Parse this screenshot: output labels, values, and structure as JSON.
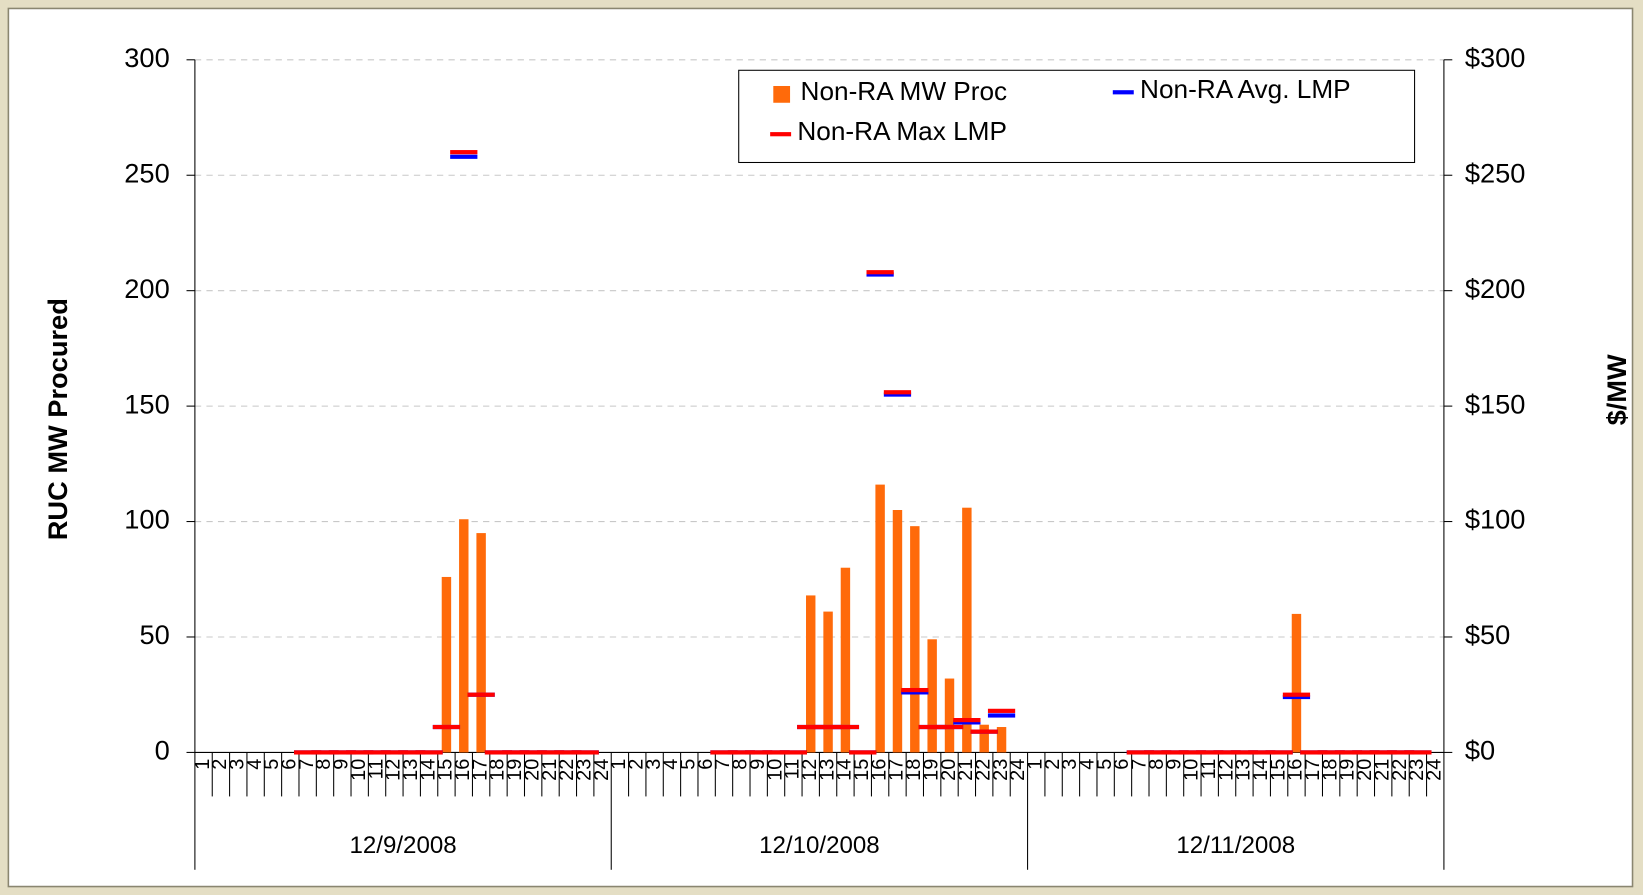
{
  "chart_data": {
    "type": "bar",
    "y_label": "RUC MW Procured",
    "y2_label": "$/MW",
    "categories": [
      "1",
      "2",
      "3",
      "4",
      "5",
      "6",
      "7",
      "8",
      "9",
      "10",
      "11",
      "12",
      "13",
      "14",
      "15",
      "16",
      "17",
      "18",
      "19",
      "20",
      "21",
      "22",
      "23",
      "24",
      "1",
      "2",
      "3",
      "4",
      "5",
      "6",
      "7",
      "8",
      "9",
      "10",
      "11",
      "12",
      "13",
      "14",
      "15",
      "16",
      "17",
      "18",
      "19",
      "20",
      "21",
      "22",
      "23",
      "24",
      "1",
      "2",
      "3",
      "4",
      "5",
      "6",
      "7",
      "8",
      "9",
      "10",
      "11",
      "12",
      "13",
      "14",
      "15",
      "16",
      "17",
      "18",
      "19",
      "20",
      "21",
      "22",
      "23",
      "24"
    ],
    "groups": [
      "12/9/2008",
      "12/10/2008",
      "12/11/2008"
    ],
    "series": [
      {
        "name": "Non-RA MW Proc",
        "color": "#ff6a0a",
        "mark": "bar",
        "values": [
          null,
          null,
          null,
          null,
          null,
          null,
          0,
          0,
          0,
          0,
          0,
          0,
          0,
          0,
          76,
          101,
          95,
          0,
          0,
          0,
          0,
          0,
          0,
          null,
          null,
          null,
          null,
          null,
          null,
          null,
          0,
          0,
          0,
          0,
          0,
          68,
          61,
          80,
          0,
          116,
          105,
          98,
          49,
          32,
          106,
          12,
          11,
          null,
          null,
          null,
          null,
          null,
          null,
          null,
          0,
          0,
          0,
          0,
          0,
          0,
          0,
          0,
          0,
          60,
          0,
          0,
          0,
          0,
          0,
          0,
          0,
          null
        ]
      },
      {
        "name": "Non-RA Avg. LMP",
        "color": "#0000ff",
        "mark": "dash",
        "axis": "y2",
        "values": [
          null,
          null,
          null,
          null,
          null,
          null,
          0,
          0,
          0,
          0,
          0,
          0,
          0,
          0,
          11,
          258,
          25,
          0,
          0,
          0,
          0,
          0,
          0,
          null,
          null,
          null,
          null,
          null,
          null,
          null,
          0,
          0,
          0,
          0,
          0,
          11,
          11,
          11,
          0,
          207,
          155,
          26,
          11,
          11,
          13,
          9,
          16,
          null,
          null,
          null,
          null,
          null,
          null,
          null,
          0,
          0,
          0,
          0,
          0,
          0,
          0,
          0,
          0,
          24,
          0,
          0,
          0,
          0,
          0,
          0,
          0,
          null
        ]
      },
      {
        "name": "Non-RA Max LMP",
        "color": "#ff0000",
        "mark": "dash",
        "axis": "y2",
        "values": [
          null,
          null,
          null,
          null,
          null,
          null,
          0,
          0,
          0,
          0,
          0,
          0,
          0,
          0,
          11,
          260,
          25,
          0,
          0,
          0,
          0,
          0,
          0,
          null,
          null,
          null,
          null,
          null,
          null,
          null,
          0,
          0,
          0,
          0,
          0,
          11,
          11,
          11,
          0,
          208,
          156,
          27,
          11,
          11,
          14,
          9,
          18,
          null,
          null,
          null,
          null,
          null,
          null,
          null,
          0,
          0,
          0,
          0,
          0,
          0,
          0,
          0,
          0,
          25,
          0,
          0,
          0,
          0,
          0,
          0,
          0,
          null
        ]
      }
    ],
    "ylim": [
      0,
      300
    ],
    "yticks": [
      0,
      50,
      100,
      150,
      200,
      250,
      300
    ],
    "y2lim": [
      0,
      300
    ],
    "y2ticks": [
      {
        "value": 0,
        "label": "$0"
      },
      {
        "value": 50,
        "label": "$50"
      },
      {
        "value": 100,
        "label": "$100"
      },
      {
        "value": 150,
        "label": "$150"
      },
      {
        "value": 200,
        "label": "$200"
      },
      {
        "value": 250,
        "label": "$250"
      },
      {
        "value": 300,
        "label": "$300"
      }
    ],
    "grid": true,
    "legend": "top-right"
  }
}
